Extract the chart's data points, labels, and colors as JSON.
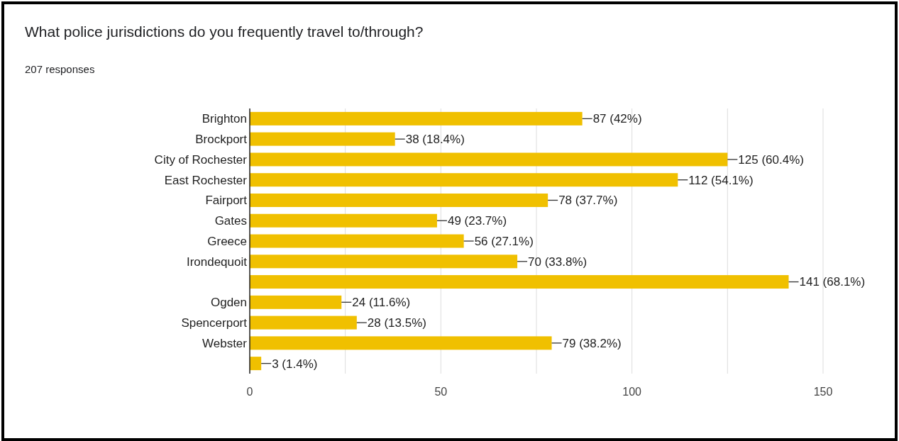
{
  "chart_data": {
    "type": "bar",
    "orientation": "horizontal",
    "title": "What police jurisdictions do you frequently travel to/through?",
    "subtitle": "207 responses",
    "categories": [
      "Brighton",
      "Brockport",
      "City of Rochester",
      "East Rochester",
      "Fairport",
      "Gates",
      "Greece",
      "Irondequoit",
      null,
      "Ogden",
      "Spencerport",
      "Webster",
      null
    ],
    "values": [
      87,
      38,
      125,
      112,
      78,
      49,
      56,
      70,
      141,
      24,
      28,
      79,
      3
    ],
    "value_labels": [
      "87 (42%)",
      "38 (18.4%)",
      "125 (60.4%)",
      "112 (54.1%)",
      "78 (37.7%)",
      "49 (23.7%)",
      "56 (27.1%)",
      "70 (33.8%)",
      "141 (68.1%)",
      "24 (11.6%)",
      "28 (13.5%)",
      "79 (38.2%)",
      "3 (1.4%)"
    ],
    "color": "#f0c000",
    "xlim": [
      0,
      150
    ],
    "xticks": [
      0,
      {
        "value": 25,
        "label": null
      },
      50,
      {
        "value": 75,
        "label": null
      },
      100,
      {
        "value": 125,
        "label": null
      },
      150
    ],
    "grid": true
  }
}
